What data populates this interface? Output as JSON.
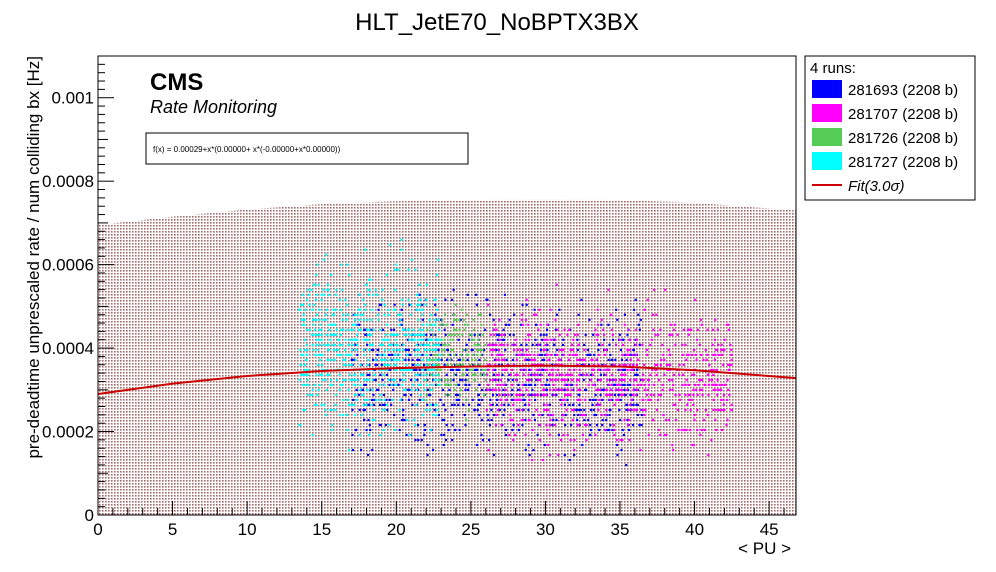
{
  "chart_data": {
    "type": "scatter",
    "title": "HLT_JetE70_NoBPTX3BX",
    "xlabel": "< PU >",
    "ylabel": "pre-deadtime unprescaled rate / num colliding bx [Hz]",
    "xlim": [
      0,
      46.8
    ],
    "ylim": [
      0,
      0.0011
    ],
    "x_ticks": [
      0,
      5,
      10,
      15,
      20,
      25,
      30,
      35,
      40,
      45
    ],
    "x_tick_labels": [
      "0",
      "5",
      "10",
      "15",
      "20",
      "25",
      "30",
      "35",
      "40",
      "45"
    ],
    "y_ticks": [
      0,
      0.0002,
      0.0004,
      0.0006,
      0.0008,
      0.001
    ],
    "y_tick_labels": [
      "0",
      "0.0002",
      "0.0004",
      "0.0006",
      "0.0008",
      "0.001"
    ],
    "cms_label": "CMS",
    "sublabel": "Rate Monitoring",
    "fit_formula": "f(x) = 0.00029+x*(0.00000+ x*(-0.00000+x*0.00000))",
    "fit": {
      "name": "Fit(3.0σ)",
      "color": "#cc0000",
      "x": [
        0,
        5,
        10,
        15,
        20,
        25,
        30,
        35,
        40,
        46.8
      ],
      "y": [
        0.00029,
        0.000315,
        0.000333,
        0.000345,
        0.000352,
        0.000356,
        0.000358,
        0.000356,
        0.000347,
        0.000328
      ]
    },
    "band": {
      "color": "#b07878",
      "x": [
        0,
        5,
        10,
        15,
        20,
        25,
        30,
        35,
        40,
        46.8
      ],
      "y": [
        0.000695,
        0.000715,
        0.000732,
        0.000745,
        0.000752,
        0.000755,
        0.000756,
        0.000755,
        0.000748,
        0.00073
      ]
    },
    "legend": {
      "header": "4 runs:",
      "placement": "right"
    },
    "series": [
      {
        "name": "281693 (2208 b)",
        "color": "#0000ff",
        "xrange": [
          17,
          36.5
        ],
        "center": 0.00033,
        "spread": 0.00028,
        "count": 900
      },
      {
        "name": "281707 (2208 b)",
        "color": "#ff00ff",
        "xrange": [
          26,
          42.5
        ],
        "center": 0.00033,
        "spread": 0.00026,
        "count": 800
      },
      {
        "name": "281726 (2208 b)",
        "color": "#55cc55",
        "xrange": [
          22,
          26
        ],
        "center": 0.00038,
        "spread": 0.0002,
        "count": 180
      },
      {
        "name": "281727 (2208 b)",
        "color": "#00ffff",
        "xrange": [
          13.5,
          23
        ],
        "center": 0.0004,
        "spread": 0.00032,
        "count": 650
      }
    ]
  }
}
